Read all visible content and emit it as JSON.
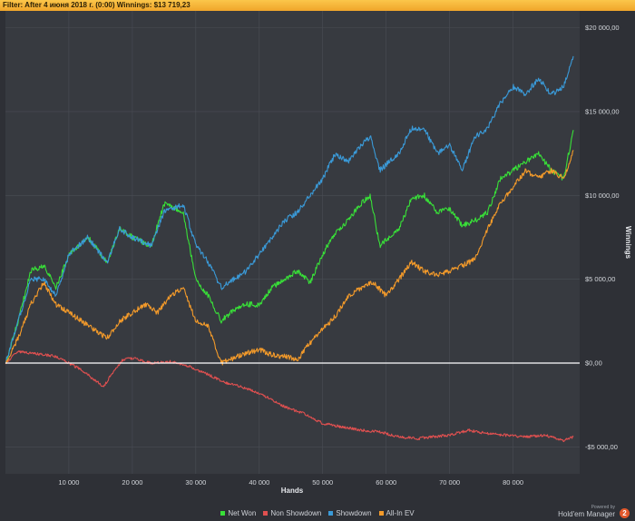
{
  "filter_bar": {
    "label": "Filter:",
    "filter_text": "After 4 июня 2018 г. (0:00)",
    "winnings_label": "Winnings:",
    "winnings_value": "$13 719,23"
  },
  "branding": {
    "powered_by": "Powered by",
    "name": "Hold'em Manager",
    "badge": "2"
  },
  "chart_data": {
    "type": "line",
    "xlabel": "Hands",
    "ylabel": "Winnings",
    "xlim": [
      0,
      90500
    ],
    "ylim": [
      -6600,
      21000
    ],
    "x_ticks": [
      10000,
      20000,
      30000,
      40000,
      50000,
      60000,
      70000,
      80000
    ],
    "x_tick_labels": [
      "10 000",
      "20 000",
      "30 000",
      "40 000",
      "50 000",
      "60 000",
      "70 000",
      "80 000"
    ],
    "y_ticks": [
      -5000,
      0,
      5000,
      10000,
      15000,
      20000
    ],
    "y_tick_labels": [
      "-$5 000,00",
      "$0,00",
      "$5 000,00",
      "$10 000,00",
      "$15 000,00",
      "$20 000,00"
    ],
    "grid": true,
    "legend_position": "bottom",
    "series": [
      {
        "name": "Net Won",
        "color": "#38e038",
        "x": [
          0,
          2000,
          4000,
          6000,
          8000,
          10000,
          13000,
          16000,
          18000,
          20000,
          23000,
          25000,
          28000,
          30000,
          32000,
          34000,
          36000,
          38000,
          40000,
          42000,
          44000,
          46000,
          48000,
          50000,
          52000,
          54000,
          56000,
          57500,
          59000,
          62000,
          64000,
          66000,
          68000,
          70000,
          72000,
          74000,
          76000,
          78000,
          80000,
          82000,
          84000,
          86000,
          88000,
          89500
        ],
        "y": [
          0,
          2500,
          5500,
          5800,
          4500,
          6500,
          7500,
          6000,
          8000,
          7500,
          7000,
          9500,
          9000,
          5000,
          4000,
          2500,
          3200,
          3500,
          3500,
          4500,
          5000,
          5500,
          4800,
          6500,
          7800,
          8500,
          9500,
          10000,
          7000,
          8000,
          9800,
          10000,
          9000,
          9200,
          8200,
          8500,
          9000,
          11000,
          11500,
          12000,
          12500,
          11500,
          11000,
          13900
        ]
      },
      {
        "name": "Non Showdown",
        "color": "#e05050",
        "x": [
          0,
          2000,
          4000,
          6000,
          8000,
          10000,
          12000,
          14000,
          15500,
          17000,
          18500,
          20000,
          23000,
          26000,
          29000,
          32000,
          35000,
          38000,
          41000,
          44000,
          47000,
          50000,
          53000,
          56000,
          59000,
          62000,
          65000,
          67000,
          70000,
          73000,
          76000,
          79000,
          82000,
          85000,
          88000,
          89500
        ],
        "y": [
          0,
          700,
          600,
          500,
          400,
          0,
          -400,
          -1000,
          -1400,
          -500,
          200,
          300,
          0,
          100,
          -200,
          -700,
          -1200,
          -1500,
          -2000,
          -2600,
          -3000,
          -3600,
          -3800,
          -4000,
          -4100,
          -4400,
          -4500,
          -4400,
          -4300,
          -4000,
          -4200,
          -4300,
          -4400,
          -4300,
          -4600,
          -4400
        ]
      },
      {
        "name": "Showdown",
        "color": "#3a9ad8",
        "x": [
          0,
          2000,
          4000,
          6000,
          8000,
          10000,
          13000,
          16000,
          18000,
          20000,
          23000,
          25000,
          28000,
          30000,
          32000,
          34000,
          36000,
          38000,
          40000,
          42000,
          44000,
          46000,
          48000,
          50000,
          52000,
          54000,
          56000,
          57500,
          59000,
          62000,
          64000,
          66000,
          68000,
          70000,
          72000,
          74000,
          76000,
          78000,
          80000,
          82000,
          84000,
          86000,
          88000,
          89500
        ],
        "y": [
          0,
          2500,
          5000,
          5000,
          4000,
          6500,
          7500,
          6000,
          8000,
          7500,
          7000,
          9000,
          9500,
          7000,
          6000,
          4500,
          5000,
          5500,
          6500,
          7500,
          8500,
          9000,
          10000,
          11000,
          12500,
          12000,
          13000,
          13500,
          11500,
          12500,
          14000,
          14000,
          12500,
          13000,
          11500,
          13500,
          14000,
          15500,
          16500,
          16000,
          17000,
          16000,
          16500,
          18300
        ]
      },
      {
        "name": "All-In EV",
        "color": "#f39a2a",
        "x": [
          0,
          2000,
          4000,
          6000,
          8000,
          10000,
          12000,
          14000,
          16000,
          18000,
          20000,
          22000,
          24000,
          26000,
          28000,
          30000,
          32000,
          34000,
          36000,
          38000,
          40000,
          42000,
          44000,
          46000,
          48000,
          50000,
          52000,
          54000,
          56000,
          58000,
          60000,
          62000,
          64000,
          66000,
          68000,
          70000,
          72000,
          74000,
          76000,
          78000,
          80000,
          82000,
          84000,
          86000,
          88000,
          89500
        ],
        "y": [
          0,
          1500,
          3500,
          4800,
          3500,
          3000,
          2500,
          2000,
          1500,
          2500,
          3000,
          3500,
          3000,
          4000,
          4500,
          2500,
          2200,
          0,
          300,
          600,
          800,
          500,
          400,
          200,
          1200,
          2000,
          2800,
          4000,
          4500,
          4800,
          4000,
          5000,
          6000,
          5500,
          5200,
          5500,
          5800,
          6200,
          8000,
          9500,
          10500,
          11500,
          11000,
          11500,
          11000,
          12700
        ]
      }
    ]
  }
}
